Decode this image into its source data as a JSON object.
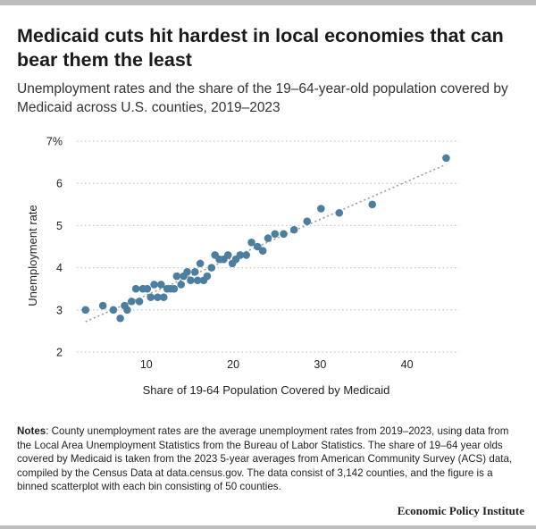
{
  "title": "Medicaid cuts hit hardest in local economies that can bear them the least",
  "subtitle": "Unemployment rates and the share of the 19–64-year-old population covered by Medicaid across U.S. counties, 2019–2023",
  "notes": {
    "label": "Notes",
    "text": ": County unemployment rates are the average unemployment rates from 2019–2023, using data from the Local Area Unemployment Statistics from the Bureau of Labor Statistics. The share of 19–64 year olds covered by Medicaid is taken from the 2023 5-year averages from American Community Survey (ACS) data, compiled by the Census Data at data.census.gov. The data consist of 3,142 counties, and the figure is a binned scatterplot with each bin consisting of 50 counties."
  },
  "source": "Economic Policy Institute",
  "colors": {
    "point": "#4c7f9f",
    "trendline": "#9a9a9a",
    "grid": "#c8c8c8",
    "bar": "#bdbdbd"
  },
  "chart_data": {
    "type": "scatter",
    "title": "Medicaid cuts hit hardest in local economies that can bear them the least",
    "xlabel": "Share of 19-64 Population Covered by Medicaid",
    "ylabel": "Unemployment rate",
    "xlim": [
      2,
      46
    ],
    "ylim": [
      2,
      7
    ],
    "xticks": [
      10,
      20,
      30,
      40
    ],
    "yticks": [
      2,
      3,
      4,
      5,
      6,
      7
    ],
    "ytick_labels": [
      "2",
      "3",
      "4",
      "5",
      "6",
      "7%"
    ],
    "grid": "horizontal-dotted",
    "trendline": {
      "x": [
        3,
        44.5
      ],
      "y": [
        2.72,
        6.45
      ]
    },
    "points": [
      {
        "x": 3.0,
        "y": 3.0
      },
      {
        "x": 5.0,
        "y": 3.1
      },
      {
        "x": 6.2,
        "y": 3.0
      },
      {
        "x": 7.0,
        "y": 2.8
      },
      {
        "x": 7.5,
        "y": 3.1
      },
      {
        "x": 7.8,
        "y": 3.0
      },
      {
        "x": 8.3,
        "y": 3.2
      },
      {
        "x": 8.8,
        "y": 3.5
      },
      {
        "x": 9.2,
        "y": 3.2
      },
      {
        "x": 9.6,
        "y": 3.5
      },
      {
        "x": 10.1,
        "y": 3.5
      },
      {
        "x": 10.5,
        "y": 3.3
      },
      {
        "x": 10.9,
        "y": 3.6
      },
      {
        "x": 11.3,
        "y": 3.3
      },
      {
        "x": 11.7,
        "y": 3.6
      },
      {
        "x": 12.0,
        "y": 3.3
      },
      {
        "x": 12.4,
        "y": 3.5
      },
      {
        "x": 12.8,
        "y": 3.5
      },
      {
        "x": 13.2,
        "y": 3.5
      },
      {
        "x": 13.5,
        "y": 3.8
      },
      {
        "x": 14.0,
        "y": 3.6
      },
      {
        "x": 14.3,
        "y": 3.8
      },
      {
        "x": 14.7,
        "y": 3.9
      },
      {
        "x": 15.1,
        "y": 3.7
      },
      {
        "x": 15.6,
        "y": 3.9
      },
      {
        "x": 15.9,
        "y": 3.7
      },
      {
        "x": 16.2,
        "y": 4.1
      },
      {
        "x": 16.6,
        "y": 3.7
      },
      {
        "x": 17.0,
        "y": 3.8
      },
      {
        "x": 17.5,
        "y": 4.0
      },
      {
        "x": 17.9,
        "y": 4.3
      },
      {
        "x": 18.4,
        "y": 4.2
      },
      {
        "x": 18.9,
        "y": 4.2
      },
      {
        "x": 19.4,
        "y": 4.3
      },
      {
        "x": 19.9,
        "y": 4.1
      },
      {
        "x": 20.3,
        "y": 4.2
      },
      {
        "x": 20.8,
        "y": 4.3
      },
      {
        "x": 21.5,
        "y": 4.3
      },
      {
        "x": 22.1,
        "y": 4.6
      },
      {
        "x": 22.8,
        "y": 4.5
      },
      {
        "x": 23.4,
        "y": 4.4
      },
      {
        "x": 24.0,
        "y": 4.7
      },
      {
        "x": 24.8,
        "y": 4.8
      },
      {
        "x": 25.8,
        "y": 4.8
      },
      {
        "x": 27.0,
        "y": 4.9
      },
      {
        "x": 28.5,
        "y": 5.1
      },
      {
        "x": 30.1,
        "y": 5.4
      },
      {
        "x": 32.2,
        "y": 5.3
      },
      {
        "x": 36.0,
        "y": 5.5
      },
      {
        "x": 44.5,
        "y": 6.6
      }
    ]
  }
}
